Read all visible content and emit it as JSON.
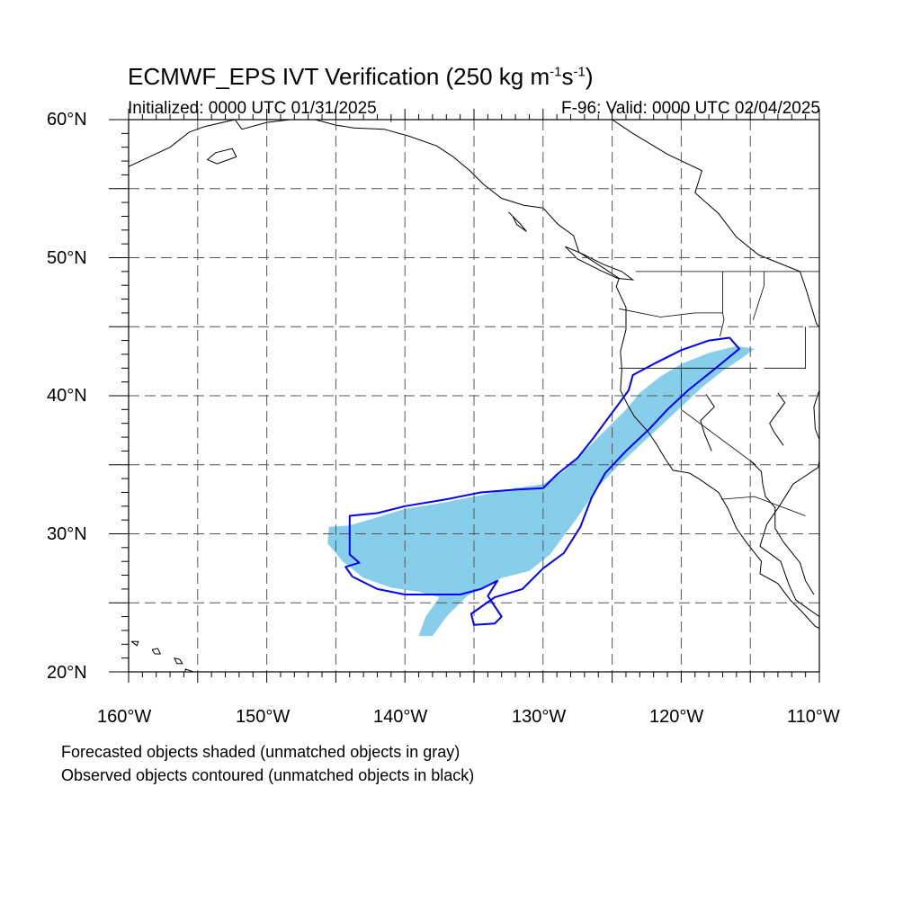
{
  "title_main": "ECMWF_EPS IVT Verification (250 kg m",
  "title_sup1": "-1",
  "title_mid": "s",
  "title_sup2": "-1",
  "title_end": ")",
  "subtitle_left": "Initialized: 0000 UTC 01/31/2025",
  "subtitle_right": "F-96: Valid: 0000 UTC 02/04/2025",
  "lat_labels": [
    "60°N",
    "50°N",
    "40°N",
    "30°N",
    "20°N"
  ],
  "lon_labels": [
    "160°W",
    "150°W",
    "140°W",
    "130°W",
    "120°W",
    "110°W"
  ],
  "notes": [
    "Forecasted objects shaded (unmatched objects in gray)",
    "Observed objects contoured (unmatched objects in black)"
  ],
  "colors": {
    "forecast_fill": "#87ceeb",
    "observed_contour": "#0000ff",
    "coastline": "#000000",
    "grid": "#555555"
  },
  "map_extent": {
    "lon": [
      -160,
      -110
    ],
    "lat": [
      20,
      60
    ]
  },
  "gridlines": {
    "lon_dashed": [
      -155,
      -150,
      -145,
      -140,
      -135,
      -130,
      -125,
      -120,
      -115
    ],
    "lat_dashed": [
      25,
      30,
      35,
      40,
      45,
      50,
      55
    ]
  },
  "forecast_object": [
    [
      -145.5,
      30.5
    ],
    [
      -144,
      30.6
    ],
    [
      -142,
      31.2
    ],
    [
      -140,
      31.8
    ],
    [
      -137,
      32.3
    ],
    [
      -134.5,
      32.8
    ],
    [
      -132,
      33.3
    ],
    [
      -130,
      33.6
    ],
    [
      -128.5,
      34.5
    ],
    [
      -127,
      36
    ],
    [
      -126,
      37
    ],
    [
      -125,
      38
    ],
    [
      -124,
      39
    ],
    [
      -123,
      40.2
    ],
    [
      -121.5,
      41.4
    ],
    [
      -120,
      42.3
    ],
    [
      -118,
      43.1
    ],
    [
      -116,
      43.6
    ],
    [
      -114.7,
      43.4
    ],
    [
      -115.5,
      42.8
    ],
    [
      -117,
      41.8
    ],
    [
      -118.5,
      40.6
    ],
    [
      -120,
      39.2
    ],
    [
      -121.5,
      37.8
    ],
    [
      -123,
      36.4
    ],
    [
      -124.5,
      35
    ],
    [
      -126,
      33.4
    ],
    [
      -127.5,
      31.2
    ],
    [
      -129.5,
      28.5
    ],
    [
      -131,
      27.3
    ],
    [
      -133,
      26.8
    ],
    [
      -135.5,
      25.5
    ],
    [
      -137,
      24
    ],
    [
      -138,
      22.6
    ],
    [
      -139,
      22.6
    ],
    [
      -138.5,
      24
    ],
    [
      -137.5,
      25.4
    ],
    [
      -139,
      25.8
    ],
    [
      -141,
      26.1
    ],
    [
      -143,
      26.8
    ],
    [
      -144.5,
      28
    ],
    [
      -145.6,
      29.3
    ]
  ],
  "observed_contour": [
    [
      -144,
      29.2
    ],
    [
      -144,
      31.3
    ],
    [
      -142,
      31.5
    ],
    [
      -140,
      32
    ],
    [
      -137,
      32.5
    ],
    [
      -134.5,
      33
    ],
    [
      -132,
      33.2
    ],
    [
      -130,
      33.3
    ],
    [
      -129,
      34.3
    ],
    [
      -127.5,
      35.5
    ],
    [
      -126.3,
      37
    ],
    [
      -125.5,
      38.1
    ],
    [
      -124.6,
      39.3
    ],
    [
      -123.8,
      40.4
    ],
    [
      -123.5,
      41.5
    ],
    [
      -122,
      42.3
    ],
    [
      -120,
      43.3
    ],
    [
      -118,
      44
    ],
    [
      -116.5,
      44.2
    ],
    [
      -115.8,
      43.4
    ],
    [
      -117.5,
      42
    ],
    [
      -119.5,
      40.4
    ],
    [
      -121,
      39
    ],
    [
      -122.3,
      37.6
    ],
    [
      -124,
      36
    ],
    [
      -125.5,
      34.4
    ],
    [
      -126.5,
      32.6
    ],
    [
      -127.3,
      30.5
    ],
    [
      -128.5,
      28.6
    ],
    [
      -130,
      27.5
    ],
    [
      -131.5,
      26
    ],
    [
      -133.5,
      25.4
    ],
    [
      -135.2,
      24.2
    ],
    [
      -135,
      23.4
    ],
    [
      -133.5,
      23.5
    ],
    [
      -133,
      24
    ],
    [
      -134,
      25.5
    ],
    [
      -133.3,
      26.6
    ],
    [
      -134.5,
      26
    ],
    [
      -136,
      25.6
    ],
    [
      -138,
      25.6
    ],
    [
      -140,
      25.6
    ],
    [
      -142,
      26
    ],
    [
      -143.8,
      26.9
    ],
    [
      -144.3,
      27.6
    ],
    [
      -143.3,
      27.9
    ],
    [
      -144,
      28.5
    ]
  ],
  "coastlines": [
    [
      [
        -125,
        60
      ],
      [
        -123.5,
        59
      ],
      [
        -121,
        57.5
      ],
      [
        -118.5,
        56.3
      ],
      [
        -119,
        54.7
      ],
      [
        -117.3,
        53.2
      ],
      [
        -116,
        51.5
      ],
      [
        -114.4,
        50.2
      ],
      [
        -111.4,
        49
      ],
      [
        -110.9,
        47.5
      ],
      [
        -110.2,
        45.2
      ],
      [
        -109.2,
        44
      ],
      [
        -108.6,
        42.7
      ],
      [
        -109.4,
        41.2
      ],
      [
        -110,
        40.4
      ],
      [
        -110.4,
        39.2
      ],
      [
        -110.3,
        37.6
      ],
      [
        -109.8,
        36.3
      ],
      [
        -110.1,
        34.8
      ],
      [
        -111.9,
        33.6
      ],
      [
        -112.9,
        32
      ],
      [
        -113.8,
        30.7
      ],
      [
        -114.3,
        29.1
      ],
      [
        -112.8,
        28
      ],
      [
        -112.2,
        26.3
      ],
      [
        -111.7,
        25.2
      ],
      [
        -110,
        24
      ],
      [
        -109.8,
        22.9
      ]
    ],
    [
      [
        -113,
        40.2
      ],
      [
        -112.5,
        39.5
      ],
      [
        -113.6,
        38
      ],
      [
        -113.3,
        37.4
      ],
      [
        -112.6,
        36.4
      ]
    ],
    [
      [
        -118.2,
        40.1
      ],
      [
        -117.6,
        39.2
      ],
      [
        -118.6,
        38.2
      ],
      [
        -118.3,
        37.2
      ],
      [
        -117.8,
        36
      ]
    ],
    [
      [
        -115,
        35.3
      ],
      [
        -114.2,
        34.5
      ],
      [
        -114.1,
        33.6
      ],
      [
        -113.9,
        32.7
      ],
      [
        -113.2,
        31.9
      ],
      [
        -113.2,
        30.4
      ],
      [
        -112.6,
        29.4
      ],
      [
        -111.4,
        27.9
      ],
      [
        -111,
        26.6
      ],
      [
        -110.4,
        25.6
      ]
    ],
    [
      [
        -160,
        56.6
      ],
      [
        -158.5,
        57.3
      ],
      [
        -157,
        58
      ],
      [
        -155.6,
        59.1
      ],
      [
        -154.5,
        59.5
      ],
      [
        -152.3,
        60
      ],
      [
        -151.8,
        59.3
      ],
      [
        -150,
        59.8
      ],
      [
        -148.3,
        60
      ],
      [
        -146.5,
        60
      ],
      [
        -145,
        59.6
      ],
      [
        -143.7,
        59.4
      ],
      [
        -141.5,
        59.3
      ],
      [
        -139.7,
        58.8
      ],
      [
        -137.7,
        58.1
      ],
      [
        -136.5,
        57.3
      ],
      [
        -135.3,
        56.3
      ],
      [
        -134.3,
        55.3
      ],
      [
        -133,
        54.3
      ],
      [
        -131.4,
        53.8
      ],
      [
        -130,
        53.6
      ],
      [
        -128.9,
        52.4
      ],
      [
        -127.8,
        51.6
      ],
      [
        -127.4,
        50.4
      ],
      [
        -125.7,
        49.3
      ],
      [
        -124.5,
        48.5
      ],
      [
        -124.7,
        47.9
      ],
      [
        -124,
        46.4
      ],
      [
        -124,
        44.8
      ],
      [
        -124.4,
        43.2
      ],
      [
        -124.3,
        41.9
      ],
      [
        -124.4,
        40.4
      ],
      [
        -123.8,
        39.2
      ],
      [
        -123.4,
        38.5
      ],
      [
        -122.4,
        37.4
      ],
      [
        -121.8,
        36.5
      ],
      [
        -121.2,
        35.5
      ],
      [
        -120.6,
        34.6
      ],
      [
        -119.4,
        34.4
      ],
      [
        -118.6,
        33.9
      ],
      [
        -117.3,
        33
      ],
      [
        -116.6,
        31.8
      ],
      [
        -116,
        30.4
      ],
      [
        -115.3,
        29.4
      ],
      [
        -114.2,
        28
      ],
      [
        -114.3,
        27.1
      ],
      [
        -113,
        26.4
      ],
      [
        -112.1,
        25.2
      ],
      [
        -111.3,
        24.4
      ],
      [
        -110.3,
        23.3
      ],
      [
        -109.5,
        22.9
      ]
    ],
    [
      [
        -132.5,
        53.3
      ],
      [
        -131.7,
        52.5
      ],
      [
        -131.2,
        51.9
      ],
      [
        -131.9,
        52.4
      ],
      [
        -132.2,
        53
      ],
      [
        -132.5,
        53.3
      ]
    ],
    [
      [
        -128.4,
        50.8
      ],
      [
        -127.2,
        50.3
      ],
      [
        -125.6,
        49.5
      ],
      [
        -124.3,
        49
      ],
      [
        -123.5,
        48.4
      ],
      [
        -124.6,
        48.5
      ],
      [
        -125.9,
        49.1
      ],
      [
        -127.5,
        49.9
      ],
      [
        -128.4,
        50.8
      ]
    ],
    [
      [
        -155.9,
        20.2
      ],
      [
        -155.3,
        20
      ],
      [
        -155,
        19.6
      ],
      [
        -155.3,
        19.2
      ],
      [
        -155.9,
        19.5
      ],
      [
        -155.9,
        20.2
      ]
    ],
    [
      [
        -156.7,
        21
      ],
      [
        -156.3,
        20.9
      ],
      [
        -156.1,
        20.6
      ],
      [
        -156.5,
        20.6
      ],
      [
        -156.7,
        21
      ]
    ],
    [
      [
        -158.3,
        21.6
      ],
      [
        -157.9,
        21.7
      ],
      [
        -157.7,
        21.3
      ],
      [
        -158.1,
        21.3
      ],
      [
        -158.3,
        21.6
      ]
    ],
    [
      [
        -159.8,
        22.2
      ],
      [
        -159.3,
        22.2
      ],
      [
        -159.4,
        21.9
      ],
      [
        -159.8,
        22.2
      ]
    ],
    [
      [
        -153.7,
        57.6
      ],
      [
        -152.5,
        57.9
      ],
      [
        -152.2,
        57.3
      ],
      [
        -153.6,
        56.8
      ],
      [
        -154.3,
        57.1
      ],
      [
        -153.7,
        57.6
      ]
    ]
  ],
  "borders": [
    [
      [
        -123.3,
        49
      ],
      [
        -110,
        49
      ]
    ],
    [
      [
        -124.5,
        42
      ],
      [
        -117,
        42
      ],
      [
        -114.5,
        42
      ]
    ],
    [
      [
        -120,
        42
      ],
      [
        -120,
        39
      ],
      [
        -114.6,
        35
      ]
    ],
    [
      [
        -117,
        49
      ],
      [
        -117,
        46
      ],
      [
        -116.9,
        45.5
      ],
      [
        -117.2,
        44.3
      ]
    ],
    [
      [
        -117.1,
        32.5
      ],
      [
        -114.7,
        32.7
      ],
      [
        -111,
        31.3
      ]
    ],
    [
      [
        -141,
        60
      ],
      [
        -141,
        59.8
      ]
    ],
    [
      [
        -114,
        49
      ],
      [
        -114,
        48
      ],
      [
        -114.8,
        45.5
      ]
    ],
    [
      [
        -111,
        45
      ],
      [
        -111,
        42
      ],
      [
        -114,
        42
      ]
    ],
    [
      [
        -124.5,
        46.3
      ],
      [
        -121.5,
        45.7
      ],
      [
        -119,
        46
      ],
      [
        -117,
        46
      ]
    ]
  ]
}
